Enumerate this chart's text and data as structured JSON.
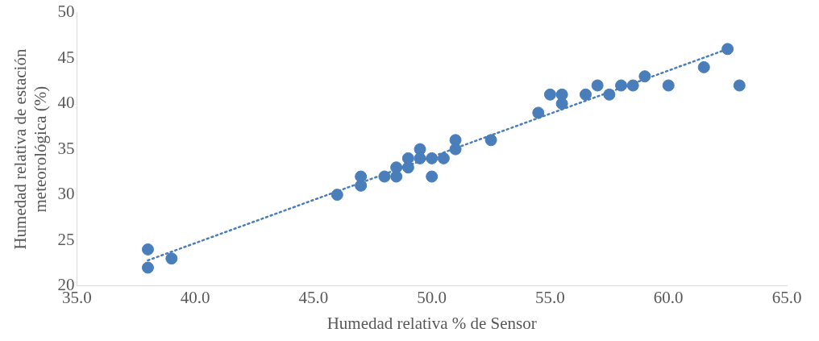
{
  "chart_data": {
    "type": "scatter",
    "xlabel": "Humedad relativa % de Sensor",
    "ylabel": "Humedad relativa de estación meteorológica (%)",
    "xlim": [
      35,
      65
    ],
    "ylim": [
      20,
      50
    ],
    "xticks": [
      {
        "value": 35,
        "label": "35.0"
      },
      {
        "value": 40,
        "label": "40.0"
      },
      {
        "value": 45,
        "label": "45.0"
      },
      {
        "value": 50,
        "label": "50.0"
      },
      {
        "value": 55,
        "label": "55.0"
      },
      {
        "value": 60,
        "label": "60.0"
      },
      {
        "value": 65,
        "label": "65.0"
      }
    ],
    "yticks": [
      20,
      25,
      30,
      35,
      40,
      45,
      50
    ],
    "grid": false,
    "legend": false,
    "marker": "circle",
    "series": [
      {
        "color": "#4a7ebb",
        "x": [
          38,
          38,
          39,
          46,
          47,
          47,
          48,
          48.5,
          48.5,
          49,
          49,
          49.5,
          49.5,
          50,
          50,
          50.5,
          51,
          51,
          52.5,
          54.5,
          55,
          55.5,
          55.5,
          56.5,
          57,
          57.5,
          58,
          58.5,
          59,
          60,
          61.5,
          62.5,
          63
        ],
        "values": [
          24,
          22,
          23,
          30,
          32,
          31,
          32,
          33,
          32,
          34,
          33,
          35,
          34,
          34,
          32,
          34,
          36,
          35,
          36,
          39,
          41,
          41,
          40,
          41,
          42,
          41,
          42,
          42,
          43,
          42,
          44,
          46,
          42
        ]
      },
      {
        "type": "line",
        "color": "#4a7ebb",
        "line_style": "dotted",
        "marker": "none",
        "x": [
          38,
          62.5
        ],
        "values": [
          22.8,
          46
        ]
      }
    ]
  }
}
